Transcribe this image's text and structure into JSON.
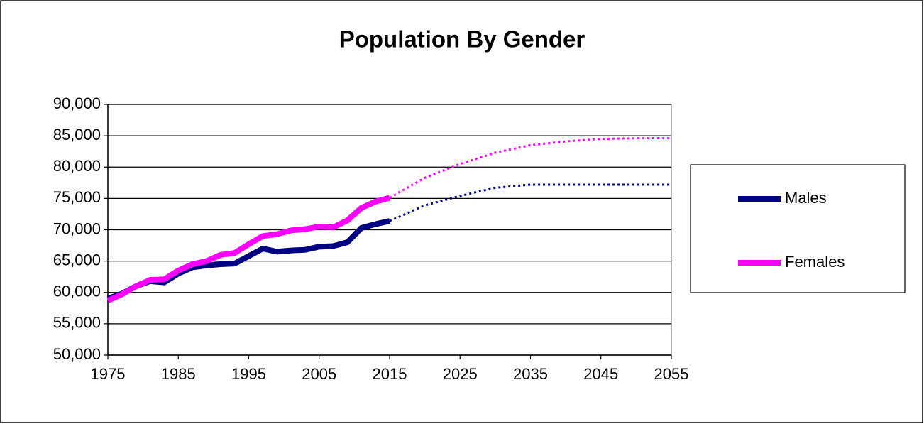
{
  "chart_data": {
    "type": "line",
    "title": "Population By Gender",
    "series": [
      {
        "name": "Males",
        "color": "#000080",
        "dash": "solid",
        "x": [
          1975,
          1977,
          1979,
          1981,
          1983,
          1985,
          1987,
          1989,
          1991,
          1993,
          1995,
          1997,
          1999,
          2001,
          2003,
          2005,
          2007,
          2009,
          2011,
          2013,
          2015
        ],
        "values": [
          59000,
          59800,
          61000,
          61800,
          61600,
          63000,
          64000,
          64300,
          64500,
          64600,
          65800,
          67000,
          66500,
          66700,
          66800,
          67300,
          67400,
          68000,
          70300,
          70900,
          71400
        ]
      },
      {
        "name": "Females",
        "color": "#ff00ff",
        "dash": "solid",
        "x": [
          1975,
          1977,
          1979,
          1981,
          1983,
          1985,
          1987,
          1989,
          1991,
          1993,
          1995,
          1997,
          1999,
          2001,
          2003,
          2005,
          2007,
          2009,
          2011,
          2013,
          2015
        ],
        "values": [
          58700,
          59700,
          61000,
          62000,
          62100,
          63500,
          64500,
          65000,
          66000,
          66300,
          67700,
          69000,
          69300,
          69900,
          70100,
          70500,
          70400,
          71500,
          73500,
          74500,
          75100
        ]
      },
      {
        "color": "#000080",
        "dash": "dotted",
        "x": [
          2015,
          2020,
          2025,
          2030,
          2035,
          2040,
          2045,
          2050,
          2055
        ],
        "values": [
          71400,
          73900,
          75400,
          76700,
          77200,
          77200,
          77200,
          77200,
          77200
        ]
      },
      {
        "color": "#ff00ff",
        "dash": "dotted",
        "x": [
          2015,
          2020,
          2025,
          2030,
          2035,
          2040,
          2045,
          2050,
          2055
        ],
        "values": [
          75100,
          78300,
          80500,
          82300,
          83500,
          84100,
          84500,
          84600,
          84600
        ]
      }
    ],
    "xlim": [
      1975,
      2055
    ],
    "xticks": [
      1975,
      1985,
      1995,
      2005,
      2015,
      2025,
      2035,
      2045,
      2055
    ],
    "ylim": [
      50000,
      90000
    ],
    "yticks": [
      {
        "value": 50000,
        "label": "50,000"
      },
      {
        "value": 55000,
        "label": "55,000"
      },
      {
        "value": 60000,
        "label": "60,000"
      },
      {
        "value": 65000,
        "label": "65,000"
      },
      {
        "value": 70000,
        "label": "70,000"
      },
      {
        "value": 75000,
        "label": "75,000"
      },
      {
        "value": 80000,
        "label": "80,000"
      },
      {
        "value": 85000,
        "label": "85,000"
      },
      {
        "value": 90000,
        "label": "90,000"
      }
    ],
    "grid": true,
    "legend": "right"
  }
}
